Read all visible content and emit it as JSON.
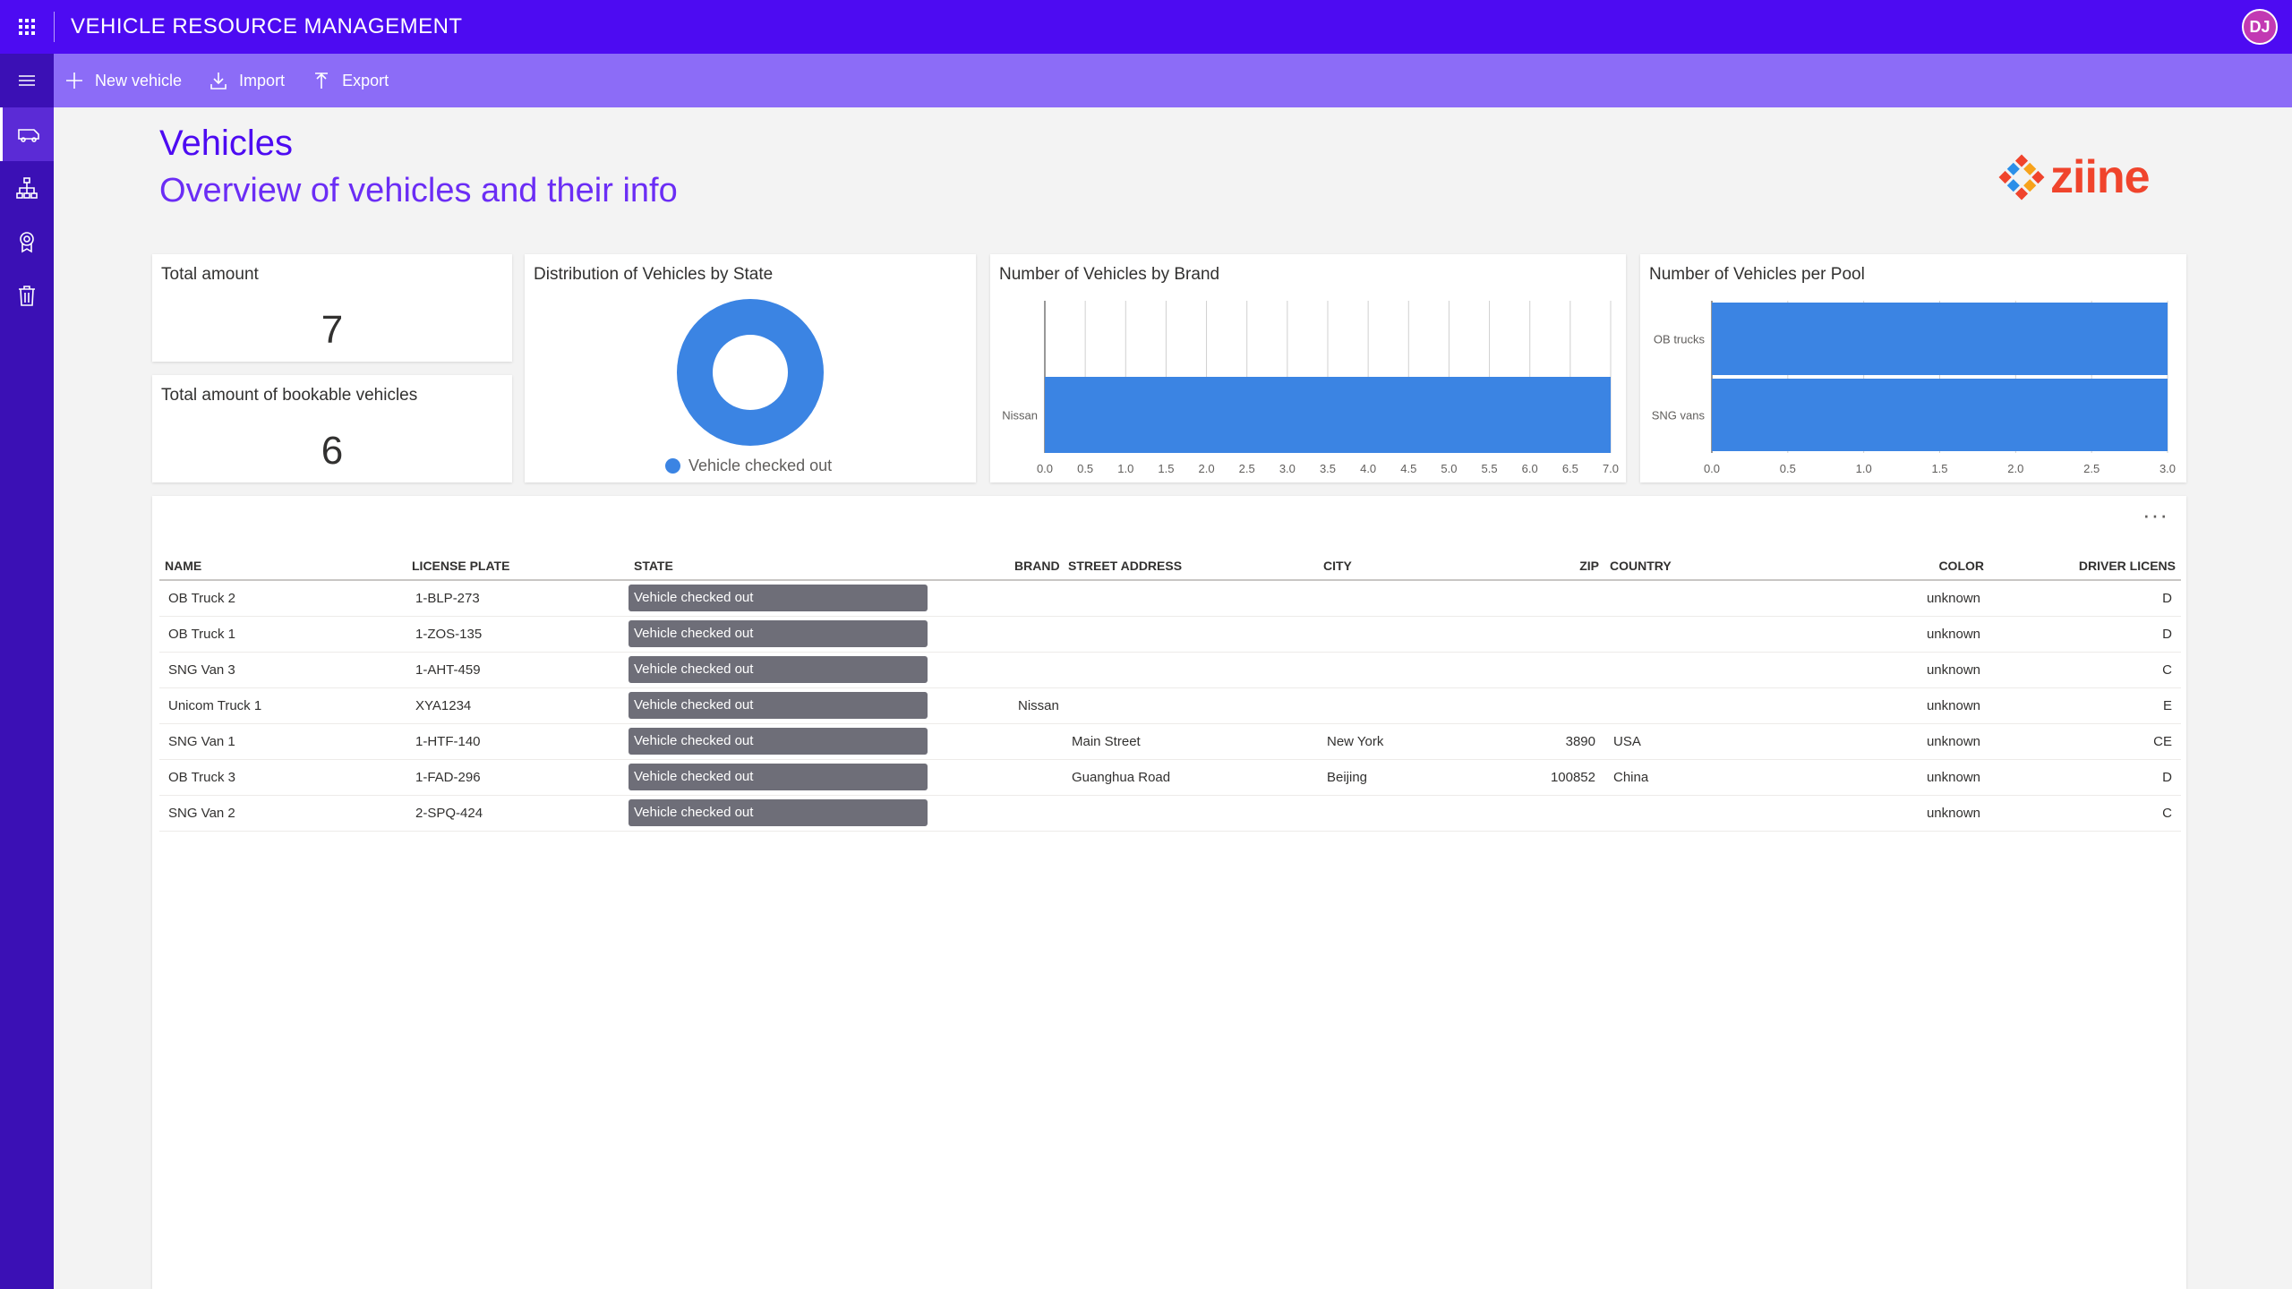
{
  "app": {
    "title": "VEHICLE RESOURCE MANAGEMENT",
    "user_initials": "DJ"
  },
  "commands": {
    "new_vehicle": "New vehicle",
    "import": "Import",
    "export": "Export"
  },
  "header": {
    "title": "Vehicles",
    "subtitle": "Overview of vehicles and their info",
    "logo_text": "ziine"
  },
  "kpis": {
    "total_label": "Total amount",
    "total_value": "7",
    "bookable_label": "Total amount of bookable vehicles",
    "bookable_value": "6"
  },
  "charts": {
    "state_title": "Distribution of Vehicles by State",
    "brand_title": "Number of Vehicles by Brand",
    "pool_title": "Number of Vehicles per Pool"
  },
  "chart_data": [
    {
      "type": "pie",
      "title": "Distribution of Vehicles by State",
      "donut": true,
      "slices": [
        {
          "label": "Vehicle checked out",
          "value": 7,
          "color": "#3b84e3"
        }
      ],
      "legend": "bottom"
    },
    {
      "type": "bar",
      "orientation": "horizontal",
      "title": "Number of Vehicles by Brand",
      "categories": [
        "Nissan"
      ],
      "values": [
        7
      ],
      "xlim": [
        0,
        7
      ],
      "ticks": [
        "0.0",
        "0.5",
        "1.0",
        "1.5",
        "2.0",
        "2.5",
        "3.0",
        "3.5",
        "4.0",
        "4.5",
        "5.0",
        "5.5",
        "6.0",
        "6.5",
        "7.0"
      ],
      "color": "#3b84e3",
      "grid": true
    },
    {
      "type": "bar",
      "orientation": "horizontal",
      "title": "Number of Vehicles per Pool",
      "categories": [
        "OB trucks",
        "SNG vans"
      ],
      "values": [
        3,
        3
      ],
      "xlim": [
        0,
        3
      ],
      "ticks": [
        "0.0",
        "0.5",
        "1.0",
        "1.5",
        "2.0",
        "2.5",
        "3.0"
      ],
      "color": "#3b84e3",
      "grid": true
    }
  ],
  "table": {
    "columns": [
      "NAME",
      "LICENSE PLATE",
      "STATE",
      "BRAND",
      "STREET ADDRESS",
      "CITY",
      "ZIP",
      "COUNTRY",
      "COLOR",
      "DRIVER LICENS"
    ],
    "rows": [
      [
        "OB Truck 2",
        "1-BLP-273",
        "Vehicle checked out",
        "",
        "",
        "",
        "",
        "",
        "unknown",
        "D"
      ],
      [
        "OB Truck 1",
        "1-ZOS-135",
        "Vehicle checked out",
        "",
        "",
        "",
        "",
        "",
        "unknown",
        "D"
      ],
      [
        "SNG Van 3",
        "1-AHT-459",
        "Vehicle checked out",
        "",
        "",
        "",
        "",
        "",
        "unknown",
        "C"
      ],
      [
        "Unicom Truck 1",
        "XYA1234",
        "Vehicle checked out",
        "Nissan",
        "",
        "",
        "",
        "",
        "unknown",
        "E"
      ],
      [
        "SNG Van 1",
        "1-HTF-140",
        "Vehicle checked out",
        "",
        "Main Street",
        "New York",
        "3890",
        "USA",
        "unknown",
        "CE"
      ],
      [
        "OB Truck 3",
        "1-FAD-296",
        "Vehicle checked out",
        "",
        "Guanghua Road",
        "Beijing",
        "100852",
        "China",
        "unknown",
        "D"
      ],
      [
        "SNG Van 2",
        "2-SPQ-424",
        "Vehicle checked out",
        "",
        "",
        "",
        "",
        "",
        "unknown",
        "C"
      ]
    ],
    "more_label": "···"
  },
  "colors": {
    "topbar": "#4d0bf2",
    "cmdbar": "#8c6cf7",
    "nav": "#3b10b5",
    "bar": "#3b84e3",
    "state_pill": "#6e6e78"
  }
}
